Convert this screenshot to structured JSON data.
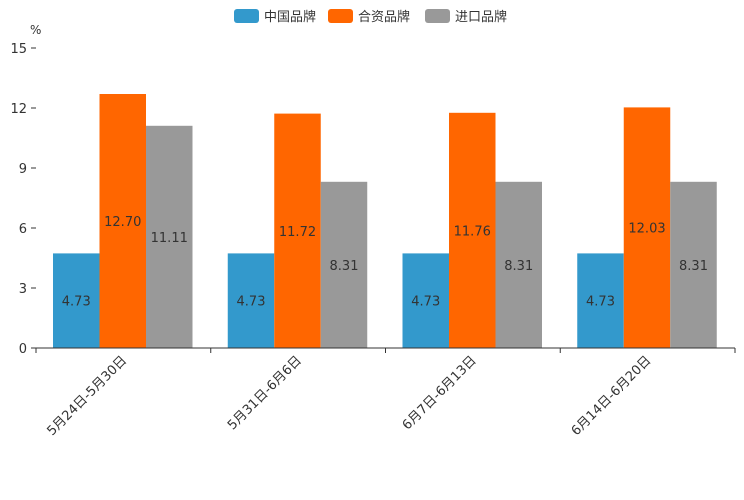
{
  "chart_data": {
    "type": "bar",
    "title": "",
    "xlabel": "",
    "ylabel": "%",
    "ylim": [
      0,
      15
    ],
    "yticks": [
      0,
      3,
      6,
      9,
      12,
      15
    ],
    "grid": false,
    "legend_position": "top-center",
    "categories": [
      "5月24日-5月30日",
      "5月31日-6月6日",
      "6月7日-6月13日",
      "6月14日-6月20日"
    ],
    "series": [
      {
        "name": "中国品牌",
        "color": "#3399CC",
        "values": [
          4.73,
          4.73,
          4.73,
          4.73
        ],
        "labels": [
          "4.73",
          "4.73",
          "4.73",
          "4.73"
        ]
      },
      {
        "name": "合资品牌",
        "color": "#FF6600",
        "values": [
          12.7,
          11.72,
          11.76,
          12.03
        ],
        "labels": [
          "12.70",
          "11.72",
          "11.76",
          "12.03"
        ]
      },
      {
        "name": "进口品牌",
        "color": "#999999",
        "values": [
          11.11,
          8.31,
          8.31,
          8.31
        ],
        "labels": [
          "11.11",
          "8.31",
          "8.31",
          "8.31"
        ]
      }
    ]
  }
}
